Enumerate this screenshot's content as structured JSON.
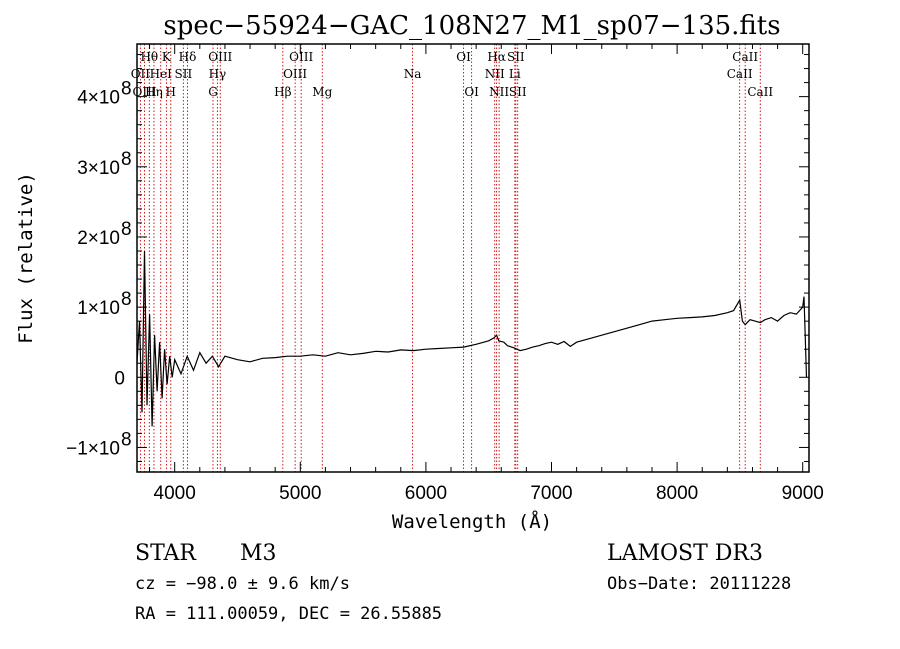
{
  "chart_data": {
    "type": "line",
    "title": "spec−55924−GAC_108N27_M1_sp07−135.fits",
    "xlabel": "Wavelength (Å)",
    "ylabel": "Flux (relative)",
    "xlim": [
      3700,
      9050
    ],
    "ylim": [
      -135000000.0,
      475000000.0
    ],
    "x_ticks": [
      {
        "value": 4000,
        "label": "4000"
      },
      {
        "value": 5000,
        "label": "5000"
      },
      {
        "value": 6000,
        "label": "6000"
      },
      {
        "value": 7000,
        "label": "7000"
      },
      {
        "value": 8000,
        "label": "8000"
      },
      {
        "value": 9000,
        "label": "9000"
      }
    ],
    "y_ticks": [
      {
        "value": -100000000.0,
        "mant": "−1×10",
        "exp": "8"
      },
      {
        "value": 0,
        "mant": "0",
        "exp": ""
      },
      {
        "value": 100000000.0,
        "mant": "1×10",
        "exp": "8"
      },
      {
        "value": 200000000.0,
        "mant": "2×10",
        "exp": "8"
      },
      {
        "value": 300000000.0,
        "mant": "3×10",
        "exp": "8"
      },
      {
        "value": 400000000.0,
        "mant": "4×10",
        "exp": "8"
      }
    ],
    "series": [
      {
        "name": "flux",
        "x": [
          3700,
          3720,
          3740,
          3760,
          3780,
          3800,
          3820,
          3840,
          3860,
          3880,
          3900,
          3920,
          3940,
          3960,
          3980,
          4000,
          4050,
          4100,
          4150,
          4200,
          4250,
          4300,
          4350,
          4400,
          4500,
          4600,
          4700,
          4800,
          4900,
          5000,
          5100,
          5200,
          5300,
          5400,
          5500,
          5600,
          5700,
          5800,
          5900,
          6000,
          6100,
          6200,
          6300,
          6400,
          6500,
          6540,
          6563,
          6580,
          6620,
          6650,
          6700,
          6750,
          6800,
          6850,
          6900,
          6950,
          7000,
          7050,
          7100,
          7150,
          7200,
          7300,
          7400,
          7500,
          7600,
          7700,
          7800,
          7900,
          8000,
          8100,
          8200,
          8300,
          8400,
          8450,
          8498,
          8520,
          8542,
          8580,
          8620,
          8662,
          8700,
          8750,
          8800,
          8850,
          8900,
          8950,
          9000,
          9010,
          9030
        ],
        "y": [
          20000000.0,
          80000000.0,
          -50000000.0,
          180000000.0,
          -40000000.0,
          90000000.0,
          -70000000.0,
          60000000.0,
          -20000000.0,
          50000000.0,
          -30000000.0,
          40000000.0,
          -10000000.0,
          30000000.0,
          0.0,
          25000000.0,
          5000000.0,
          30000000.0,
          10000000.0,
          35000000.0,
          20000000.0,
          30000000.0,
          15000000.0,
          30000000.0,
          25000000.0,
          22000000.0,
          27000000.0,
          28000000.0,
          30000000.0,
          30000000.0,
          32000000.0,
          30000000.0,
          35000000.0,
          32000000.0,
          34000000.0,
          37000000.0,
          36000000.0,
          39000000.0,
          38000000.0,
          40000000.0,
          41000000.0,
          42000000.0,
          43000000.0,
          47000000.0,
          52000000.0,
          56000000.0,
          60000000.0,
          52000000.0,
          50000000.0,
          45000000.0,
          42000000.0,
          38000000.0,
          40000000.0,
          43000000.0,
          45000000.0,
          48000000.0,
          50000000.0,
          47000000.0,
          51000000.0,
          44000000.0,
          50000000.0,
          55000000.0,
          60000000.0,
          65000000.0,
          70000000.0,
          75000000.0,
          80000000.0,
          82000000.0,
          84000000.0,
          85000000.0,
          86000000.0,
          88000000.0,
          92000000.0,
          95000000.0,
          110000000.0,
          80000000.0,
          75000000.0,
          82000000.0,
          80000000.0,
          78000000.0,
          82000000.0,
          85000000.0,
          80000000.0,
          88000000.0,
          92000000.0,
          90000000.0,
          100000000.0,
          115000000.0,
          0.0
        ]
      }
    ],
    "spectral_lines": [
      {
        "name": "Hθ",
        "wavelength": 3798,
        "row": 1
      },
      {
        "name": "OII",
        "wavelength": 3727,
        "row": 2
      },
      {
        "name": "OIII",
        "wavelength": 3760,
        "row": 3
      },
      {
        "name": "K",
        "wavelength": 3934,
        "row": 1
      },
      {
        "name": "HeI",
        "wavelength": 3889,
        "row": 2
      },
      {
        "name": "Hη",
        "wavelength": 3835,
        "row": 3
      },
      {
        "name": "SII",
        "wavelength": 4069,
        "row": 2
      },
      {
        "name": "H",
        "wavelength": 3969,
        "row": 3
      },
      {
        "name": "Hδ",
        "wavelength": 4102,
        "row": 1
      },
      {
        "name": "OIII",
        "wavelength": 4363,
        "row": 1
      },
      {
        "name": "Hγ",
        "wavelength": 4340,
        "row": 2
      },
      {
        "name": "G",
        "wavelength": 4305,
        "row": 3
      },
      {
        "name": "OIII",
        "wavelength": 5007,
        "row": 1
      },
      {
        "name": "OIII",
        "wavelength": 4959,
        "row": 2
      },
      {
        "name": "Hβ",
        "wavelength": 4861,
        "row": 3
      },
      {
        "name": "Mg",
        "wavelength": 5175,
        "row": 3
      },
      {
        "name": "Na",
        "wavelength": 5894,
        "row": 2
      },
      {
        "name": "OI",
        "wavelength": 6300,
        "row": 1
      },
      {
        "name": "OI",
        "wavelength": 6364,
        "row": 3
      },
      {
        "name": "Hα",
        "wavelength": 6563,
        "row": 1
      },
      {
        "name": "NII",
        "wavelength": 6548,
        "row": 2
      },
      {
        "name": "NII",
        "wavelength": 6583,
        "row": 3
      },
      {
        "name": "SII",
        "wavelength": 6716,
        "row": 1
      },
      {
        "name": "Li",
        "wavelength": 6708,
        "row": 2
      },
      {
        "name": "SII",
        "wavelength": 6731,
        "row": 3
      },
      {
        "name": "CaII",
        "wavelength": 8542,
        "row": 1
      },
      {
        "name": "CaII",
        "wavelength": 8498,
        "row": 2
      },
      {
        "name": "CaII",
        "wavelength": 8662,
        "row": 3
      }
    ]
  },
  "info": {
    "class": "STAR",
    "subclass": "M3",
    "cz": "cz = −98.0 ± 9.6 km/s",
    "radec": "RA = 111.00059, DEC =  26.55885",
    "survey": "LAMOST DR3",
    "obs_date": "Obs−Date: 20111228"
  },
  "colors": {
    "axis": "#000000",
    "spectrum": "#000000",
    "line_marker": "#cc0000"
  }
}
